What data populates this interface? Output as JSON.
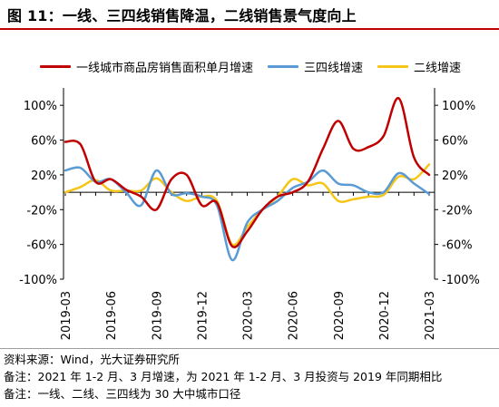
{
  "title": "图 11：一线、三四线销售降温，二线销售景气度向上",
  "notes": [
    "资料来源：Wind，光大证券研究所",
    "备注：2021 年 1-2 月、3 月增速，为 2021 年 1-2 月、3 月投资与 2019 年同期相比",
    "备注：一线、二线、三四线为 30 大中城市口径"
  ],
  "chart_data": {
    "type": "line",
    "x": [
      "2019-03",
      "2019-04",
      "2019-05",
      "2019-06",
      "2019-07",
      "2019-08",
      "2019-09",
      "2019-10",
      "2019-11",
      "2019-12",
      "2020-01",
      "2020-02",
      "2020-03",
      "2020-04",
      "2020-05",
      "2020-06",
      "2020-07",
      "2020-08",
      "2020-09",
      "2020-10",
      "2020-11",
      "2020-12",
      "2021-01",
      "2021-02",
      "2021-03"
    ],
    "x_tick_labels": [
      "2019-03",
      "2019-06",
      "2019-09",
      "2019-12",
      "2020-03",
      "2020-06",
      "2020-09",
      "2020-12",
      "2021-03"
    ],
    "series": [
      {
        "name": "一线城市商品房销售面积单月增速",
        "color": "#c00000",
        "values": [
          58,
          55,
          12,
          15,
          3,
          -5,
          -20,
          15,
          20,
          -15,
          -12,
          -62,
          -45,
          -20,
          -5,
          0,
          12,
          50,
          82,
          50,
          52,
          65,
          108,
          40,
          20
        ]
      },
      {
        "name": "三四线增速",
        "color": "#5b9bd5",
        "values": [
          25,
          28,
          12,
          15,
          0,
          -15,
          25,
          -2,
          -1,
          -5,
          -15,
          -78,
          -35,
          -20,
          -10,
          5,
          12,
          25,
          10,
          8,
          0,
          0,
          22,
          10,
          -2
        ]
      },
      {
        "name": "二线增速",
        "color": "#f5c518",
        "values": [
          0,
          6,
          14,
          2,
          2,
          2,
          16,
          0,
          -10,
          -5,
          -10,
          -60,
          -40,
          -20,
          -5,
          15,
          8,
          10,
          -10,
          -8,
          -5,
          -3,
          18,
          15,
          32
        ]
      }
    ],
    "yticks": [
      "100%",
      "60%",
      "20%",
      "-20%",
      "-60%",
      "-100%"
    ],
    "ylim": [
      -100,
      120
    ],
    "grid": false,
    "legend_position": "top"
  }
}
